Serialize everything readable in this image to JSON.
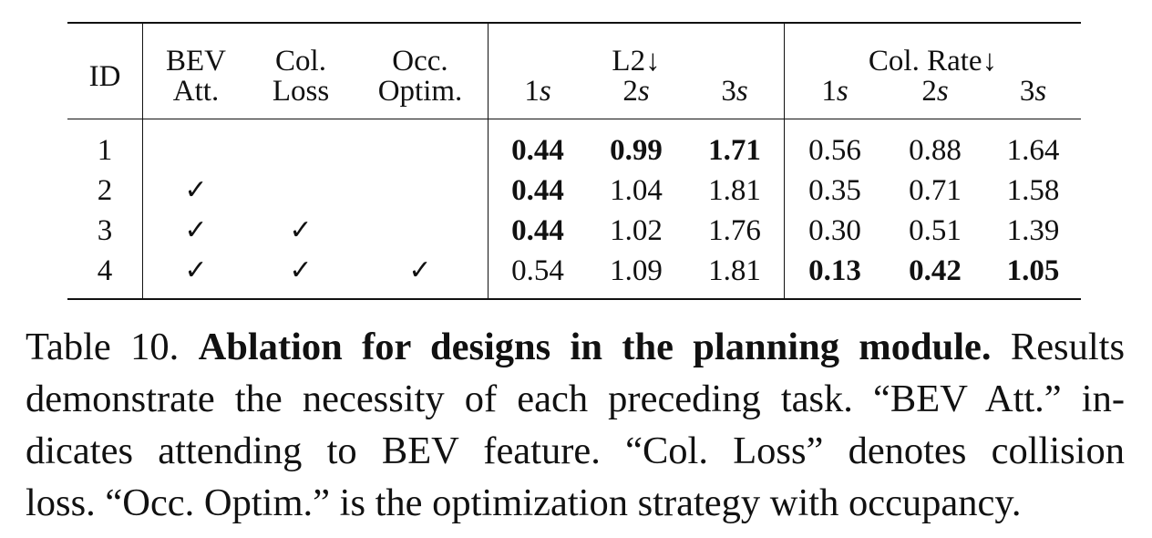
{
  "table": {
    "header": {
      "id": "ID",
      "bev_top": "BEV",
      "bev_bottom": "Att.",
      "col_top": "Col.",
      "col_bottom": "Loss",
      "occ_top": "Occ.",
      "occ_bottom": "Optim.",
      "l2": "L2↓",
      "col_rate": "Col. Rate↓",
      "t1_num": "1",
      "t2_num": "2",
      "t3_num": "3",
      "t_unit": "s"
    },
    "rows": [
      {
        "id": "1",
        "bev": "",
        "col": "",
        "occ": "",
        "l2_1": "0.44",
        "l2_2": "0.99",
        "l2_3": "1.71",
        "cr_1": "0.56",
        "cr_2": "0.88",
        "cr_3": "1.64"
      },
      {
        "id": "2",
        "bev": "✓",
        "col": "",
        "occ": "",
        "l2_1": "0.44",
        "l2_2": "1.04",
        "l2_3": "1.81",
        "cr_1": "0.35",
        "cr_2": "0.71",
        "cr_3": "1.58"
      },
      {
        "id": "3",
        "bev": "✓",
        "col": "✓",
        "occ": "",
        "l2_1": "0.44",
        "l2_2": "1.02",
        "l2_3": "1.76",
        "cr_1": "0.30",
        "cr_2": "0.51",
        "cr_3": "1.39"
      },
      {
        "id": "4",
        "bev": "✓",
        "col": "✓",
        "occ": "✓",
        "l2_1": "0.54",
        "l2_2": "1.09",
        "l2_3": "1.81",
        "cr_1": "0.13",
        "cr_2": "0.42",
        "cr_3": "1.05"
      }
    ]
  },
  "caption": {
    "label": "Table 10.",
    "title": "Ablation for designs in the planning module.",
    "line1_tail": "Results",
    "line2": "demonstrate the necessity of each preceding task. “BEV Att.” in-",
    "line3": "dicates attending to BEV feature.  “Col.  Loss” denotes collision",
    "line4": "loss. “Occ. Optim.” is the optimization strategy with occupancy."
  }
}
